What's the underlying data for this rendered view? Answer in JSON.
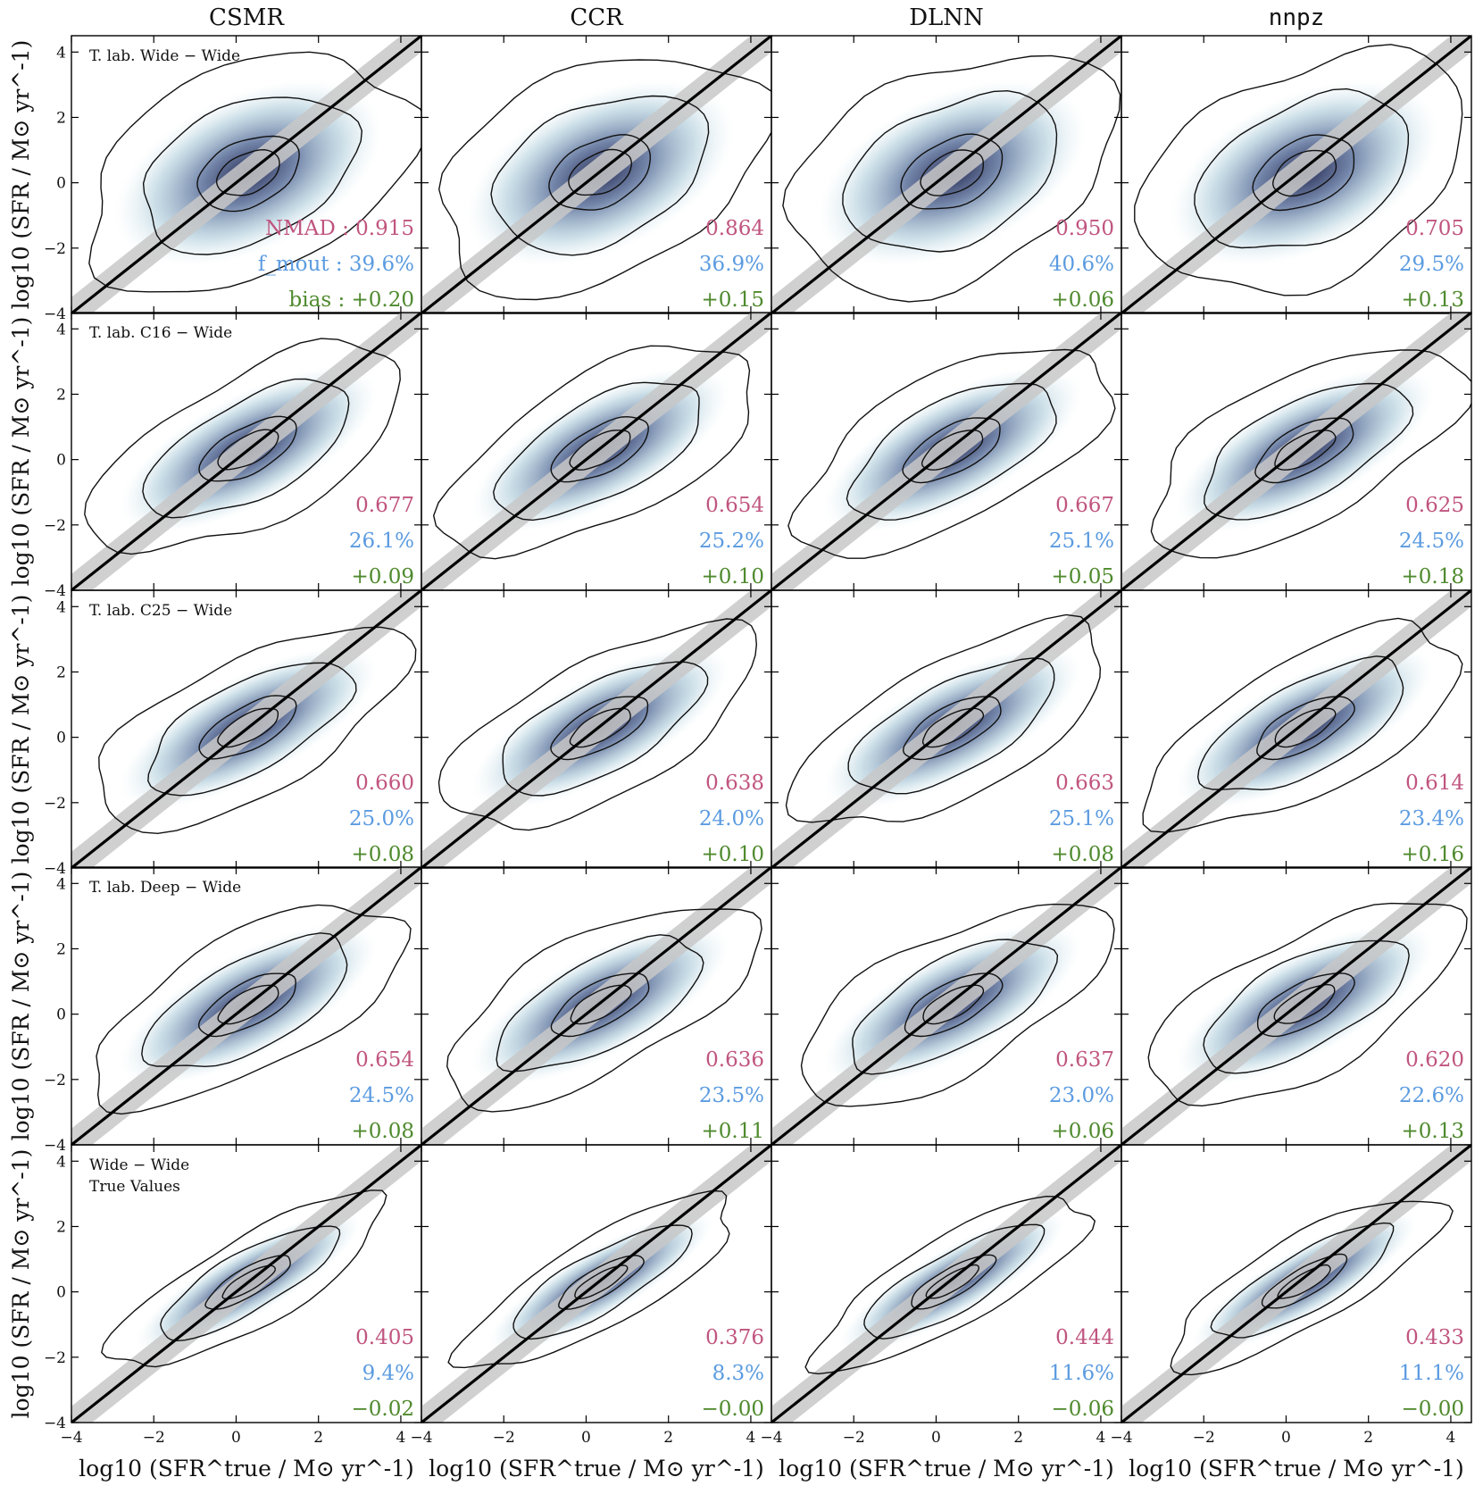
{
  "chart_data": {
    "type": "scatter",
    "columns": [
      "CSMR",
      "CCR",
      "DLNN",
      "nnpz"
    ],
    "xlabel": "log10 (SFR^true / M⊙ yr^-1)",
    "ylabel": "log10 (SFR / M⊙ yr^-1)",
    "xlim": [
      -4,
      4.5
    ],
    "ylim": [
      -4,
      4.5
    ],
    "xticks": [
      "−4",
      "−2",
      "0",
      "2",
      "4"
    ],
    "yticks": [
      "−4",
      "−2",
      "0",
      "2",
      "4"
    ],
    "stat_labels": {
      "nmad": "NMAD : ",
      "fout": "f_mout : ",
      "bias": "bias : "
    },
    "colors": {
      "nmad": "#c0557f",
      "fout": "#5b9be0",
      "bias": "#4f8a2e",
      "band": "#c8c8c8",
      "contour": "#111111",
      "density_dark": "#1b1f4a",
      "density_light": "#dfeef3"
    },
    "rows": [
      {
        "label": [
          "T. lab. Wide − Wide"
        ],
        "panels": [
          {
            "nmad": "0.915",
            "fout": "39.6%",
            "bias": "+0.20"
          },
          {
            "nmad": "0.864",
            "fout": "36.9%",
            "bias": "+0.15"
          },
          {
            "nmad": "0.950",
            "fout": "40.6%",
            "bias": "+0.06"
          },
          {
            "nmad": "0.705",
            "fout": "29.5%",
            "bias": "+0.13"
          }
        ]
      },
      {
        "label": [
          "T. lab. C16 − Wide"
        ],
        "panels": [
          {
            "nmad": "0.677",
            "fout": "26.1%",
            "bias": "+0.09"
          },
          {
            "nmad": "0.654",
            "fout": "25.2%",
            "bias": "+0.10"
          },
          {
            "nmad": "0.667",
            "fout": "25.1%",
            "bias": "+0.05"
          },
          {
            "nmad": "0.625",
            "fout": "24.5%",
            "bias": "+0.18"
          }
        ]
      },
      {
        "label": [
          "T. lab. C25 − Wide"
        ],
        "panels": [
          {
            "nmad": "0.660",
            "fout": "25.0%",
            "bias": "+0.08"
          },
          {
            "nmad": "0.638",
            "fout": "24.0%",
            "bias": "+0.10"
          },
          {
            "nmad": "0.663",
            "fout": "25.1%",
            "bias": "+0.08"
          },
          {
            "nmad": "0.614",
            "fout": "23.4%",
            "bias": "+0.16"
          }
        ]
      },
      {
        "label": [
          "T. lab. Deep − Wide"
        ],
        "panels": [
          {
            "nmad": "0.654",
            "fout": "24.5%",
            "bias": "+0.08"
          },
          {
            "nmad": "0.636",
            "fout": "23.5%",
            "bias": "+0.11"
          },
          {
            "nmad": "0.637",
            "fout": "23.0%",
            "bias": "+0.06"
          },
          {
            "nmad": "0.620",
            "fout": "22.6%",
            "bias": "+0.13"
          }
        ]
      },
      {
        "label": [
          "Wide − Wide",
          "True Values"
        ],
        "panels": [
          {
            "nmad": "0.405",
            "fout": "9.4%",
            "bias": "−0.02"
          },
          {
            "nmad": "0.376",
            "fout": "8.3%",
            "bias": "−0.00"
          },
          {
            "nmad": "0.444",
            "fout": "11.6%",
            "bias": "−0.06"
          },
          {
            "nmad": "0.433",
            "fout": "11.1%",
            "bias": "−0.00"
          }
        ]
      }
    ]
  }
}
